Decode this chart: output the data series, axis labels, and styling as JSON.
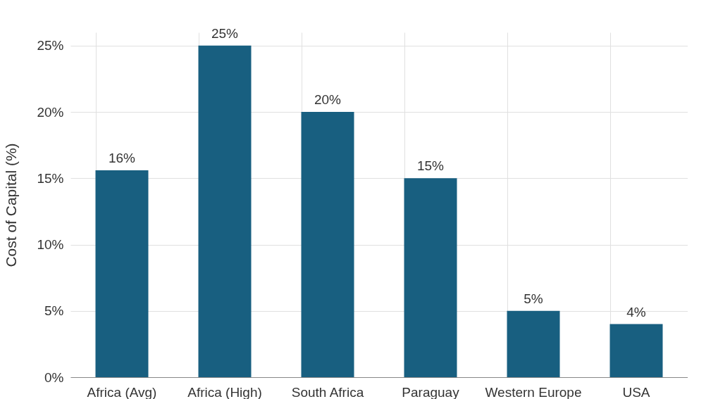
{
  "chart_data": {
    "type": "bar",
    "ylabel": "Cost of Capital (%)",
    "categories": [
      "Africa (Avg)",
      "Africa (High)",
      "South Africa",
      "Paraguay",
      "Western Europe",
      "USA"
    ],
    "values": [
      15.6,
      25,
      20,
      15,
      5,
      4
    ],
    "value_labels": [
      "16%",
      "25%",
      "20%",
      "15%",
      "5%",
      "4%"
    ],
    "color": "#185f80",
    "ylim": [
      0,
      26
    ],
    "yticks": [
      {
        "value": 0,
        "label": "0%"
      },
      {
        "value": 5,
        "label": "5%"
      },
      {
        "value": 10,
        "label": "10%"
      },
      {
        "value": 15,
        "label": "15%"
      },
      {
        "value": 20,
        "label": "20%"
      },
      {
        "value": 25,
        "label": "25%"
      }
    ],
    "grid": true
  }
}
